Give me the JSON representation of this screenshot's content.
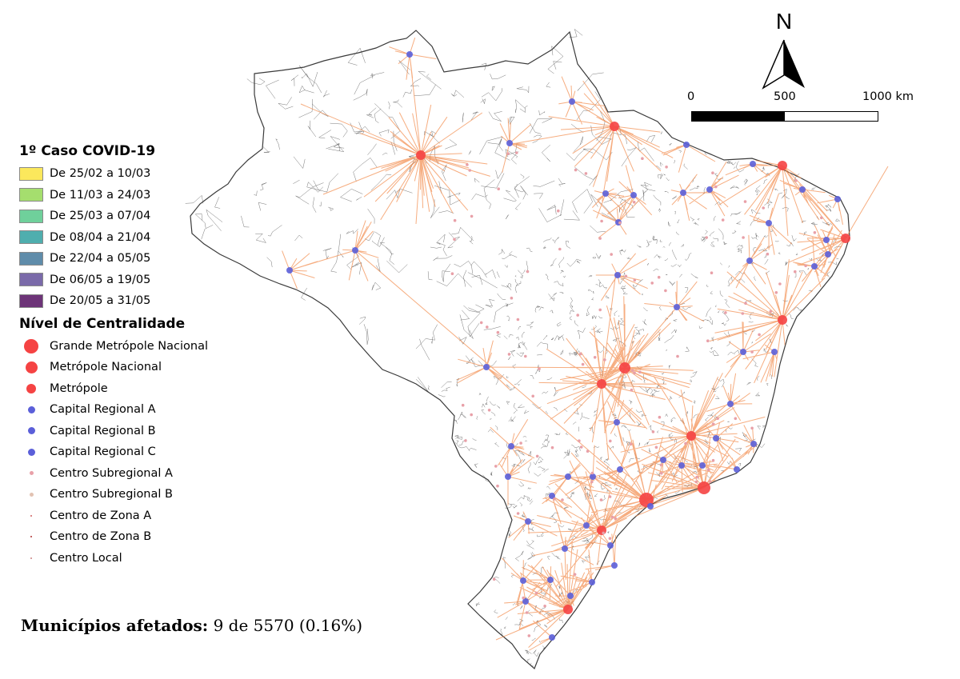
{
  "legend": {
    "first_case_title": "1º Caso COVID-19",
    "first_case_items": [
      {
        "label": "De 25/02 a 10/03",
        "color": "#fbe85c"
      },
      {
        "label": "De 11/03 a 24/03",
        "color": "#a5de6e"
      },
      {
        "label": "De 25/03 a 07/04",
        "color": "#6fd09b"
      },
      {
        "label": "De 08/04 a 21/04",
        "color": "#4faeae"
      },
      {
        "label": "De 22/04 a 05/05",
        "color": "#5f8caa"
      },
      {
        "label": "De 06/05 a 19/05",
        "color": "#7a6aa9"
      },
      {
        "label": "De 20/05 a 31/05",
        "color": "#6d3478"
      }
    ],
    "centrality_title": "Nível de Centralidade",
    "centrality_items": [
      {
        "label": "Grande Metrópole Nacional",
        "color": "#f54343"
      },
      {
        "label": "Metrópole Nacional",
        "color": "#f54343"
      },
      {
        "label": "Metrópole",
        "color": "#f54343"
      },
      {
        "label": "Capital Regional A",
        "color": "#5b5fd9"
      },
      {
        "label": "Capital Regional B",
        "color": "#5b5fd9"
      },
      {
        "label": "Capital Regional C",
        "color": "#5b5fd9"
      },
      {
        "label": "Centro Subregional A",
        "color": "#e8a0a8"
      },
      {
        "label": "Centro Subregional B",
        "color": "#e2c2b2"
      },
      {
        "label": "Centro de Zona A",
        "color": "#d06060"
      },
      {
        "label": "Centro de Zona B",
        "color": "#b03030"
      },
      {
        "label": "Centro Local",
        "color": "#d09090"
      }
    ]
  },
  "north_arrow": {
    "label": "N"
  },
  "scale_bar": {
    "labels": [
      "0",
      "500",
      "1000 km"
    ]
  },
  "footer": {
    "label": "Municípios afetados:",
    "value": "9 de 5570 (0.16%)"
  },
  "colors": {
    "link_line": "#f28a4a",
    "metropole": "#f54343",
    "capital_regional": "#5b5fd9",
    "border": "#3a3a3a"
  }
}
